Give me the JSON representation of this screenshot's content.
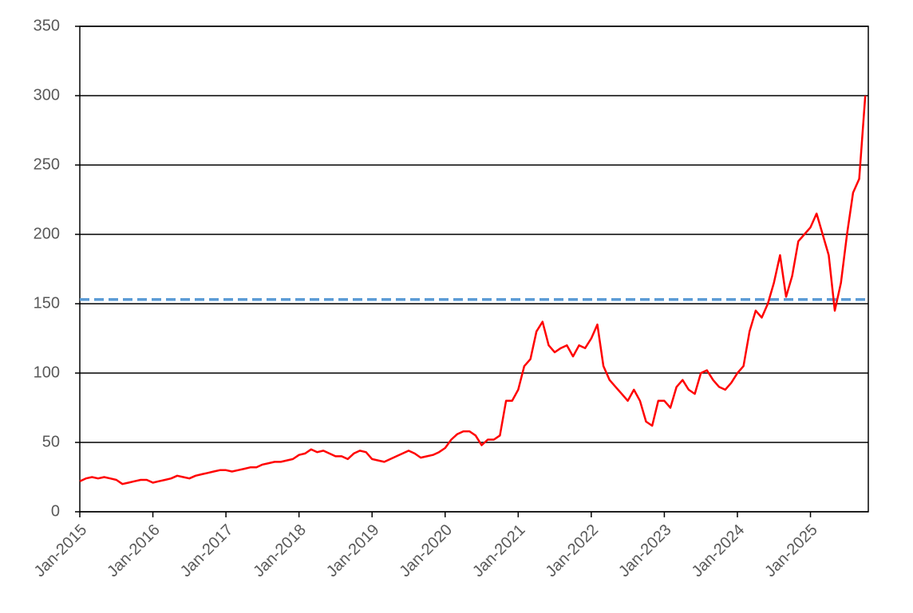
{
  "chart_data": {
    "type": "line",
    "x": [
      "Jan-2015",
      "Feb-2015",
      "Mar-2015",
      "Apr-2015",
      "May-2015",
      "Jun-2015",
      "Jul-2015",
      "Aug-2015",
      "Sep-2015",
      "Oct-2015",
      "Nov-2015",
      "Dec-2015",
      "Jan-2016",
      "Feb-2016",
      "Mar-2016",
      "Apr-2016",
      "May-2016",
      "Jun-2016",
      "Jul-2016",
      "Aug-2016",
      "Sep-2016",
      "Oct-2016",
      "Nov-2016",
      "Dec-2016",
      "Jan-2017",
      "Feb-2017",
      "Mar-2017",
      "Apr-2017",
      "May-2017",
      "Jun-2017",
      "Jul-2017",
      "Aug-2017",
      "Sep-2017",
      "Oct-2017",
      "Nov-2017",
      "Dec-2017",
      "Jan-2018",
      "Feb-2018",
      "Mar-2018",
      "Apr-2018",
      "May-2018",
      "Jun-2018",
      "Jul-2018",
      "Aug-2018",
      "Sep-2018",
      "Oct-2018",
      "Nov-2018",
      "Dec-2018",
      "Jan-2019",
      "Feb-2019",
      "Mar-2019",
      "Apr-2019",
      "May-2019",
      "Jun-2019",
      "Jul-2019",
      "Aug-2019",
      "Sep-2019",
      "Oct-2019",
      "Nov-2019",
      "Dec-2019",
      "Jan-2020",
      "Feb-2020",
      "Mar-2020",
      "Apr-2020",
      "May-2020",
      "Jun-2020",
      "Jul-2020",
      "Aug-2020",
      "Sep-2020",
      "Oct-2020",
      "Nov-2020",
      "Dec-2020",
      "Jan-2021",
      "Feb-2021",
      "Mar-2021",
      "Apr-2021",
      "May-2021",
      "Jun-2021",
      "Jul-2021",
      "Aug-2021",
      "Sep-2021",
      "Oct-2021",
      "Nov-2021",
      "Dec-2021",
      "Jan-2022",
      "Feb-2022",
      "Mar-2022",
      "Apr-2022",
      "May-2022",
      "Jun-2022",
      "Jul-2022",
      "Aug-2022",
      "Sep-2022",
      "Oct-2022",
      "Nov-2022",
      "Dec-2022",
      "Jan-2023",
      "Feb-2023",
      "Mar-2023",
      "Apr-2023",
      "May-2023",
      "Jun-2023",
      "Jul-2023",
      "Aug-2023",
      "Sep-2023",
      "Oct-2023",
      "Nov-2023",
      "Dec-2023",
      "Jan-2024",
      "Feb-2024",
      "Mar-2024",
      "Apr-2024",
      "May-2024",
      "Jun-2024",
      "Jul-2024",
      "Aug-2024",
      "Sep-2024",
      "Oct-2024",
      "Nov-2024",
      "Dec-2024",
      "Jan-2025",
      "Feb-2025",
      "Mar-2025",
      "Apr-2025",
      "May-2025",
      "Jun-2025",
      "Jul-2025",
      "Aug-2025",
      "Sep-2025",
      "Oct-2025"
    ],
    "values": [
      22,
      24,
      25,
      24,
      25,
      24,
      23,
      20,
      21,
      22,
      23,
      23,
      21,
      22,
      23,
      24,
      26,
      25,
      24,
      26,
      27,
      28,
      29,
      30,
      30,
      29,
      30,
      31,
      32,
      32,
      34,
      35,
      36,
      36,
      37,
      38,
      41,
      42,
      45,
      43,
      44,
      42,
      40,
      40,
      38,
      42,
      44,
      43,
      38,
      37,
      36,
      38,
      40,
      42,
      44,
      42,
      39,
      40,
      41,
      43,
      46,
      52,
      56,
      58,
      58,
      55,
      48,
      52,
      52,
      55,
      80,
      80,
      88,
      105,
      110,
      130,
      137,
      120,
      115,
      118,
      120,
      112,
      120,
      118,
      125,
      135,
      105,
      95,
      90,
      85,
      80,
      88,
      80,
      65,
      62,
      80,
      80,
      75,
      90,
      95,
      88,
      85,
      100,
      102,
      95,
      90,
      88,
      93,
      100,
      105,
      130,
      145,
      140,
      150,
      165,
      185,
      155,
      170,
      195,
      200,
      205,
      215,
      200,
      185,
      145,
      165,
      200,
      230,
      240,
      300
    ],
    "color": "#ff0000",
    "xlim": [
      "Jan-2015",
      "Oct-2025"
    ],
    "xticks": [
      "Jan-2015",
      "Jan-2016",
      "Jan-2017",
      "Jan-2018",
      "Jan-2019",
      "Jan-2020",
      "Jan-2021",
      "Jan-2022",
      "Jan-2023",
      "Jan-2024",
      "Jan-2025"
    ],
    "ylim": [
      0,
      350
    ],
    "yticks": [
      0,
      50,
      100,
      150,
      200,
      250,
      300,
      350
    ],
    "grid": true,
    "reference_line": {
      "value": 153,
      "color": "#5b9bd5"
    }
  }
}
